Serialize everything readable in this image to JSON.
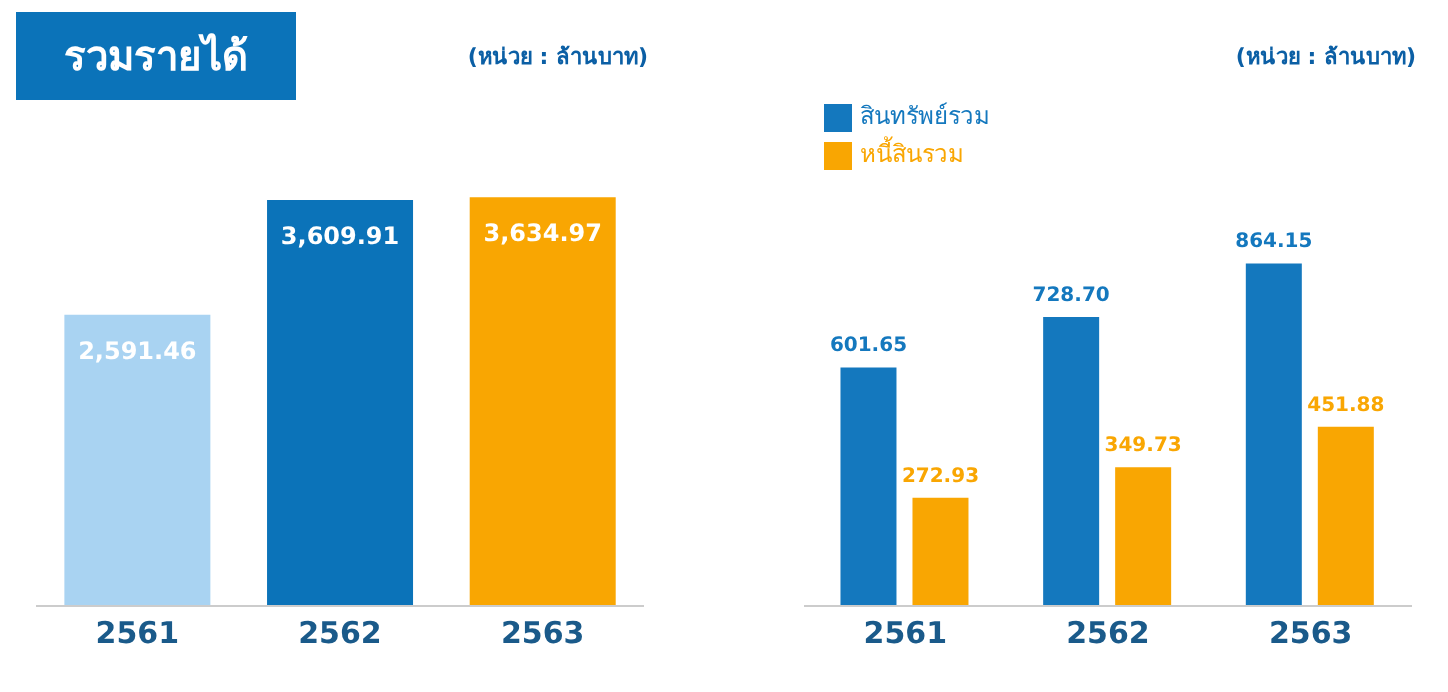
{
  "chart_data": [
    {
      "type": "bar",
      "title": "รวมรายได้",
      "annotations": [
        "(หน่วย : ล้านบาท)"
      ],
      "categories": [
        "2561",
        "2562",
        "2563"
      ],
      "values": [
        2591.46,
        3609.91,
        3634.97
      ],
      "value_labels": [
        "2,591.46",
        "3,609.91",
        "3,634.97"
      ],
      "colors": [
        "#a9d3f2",
        "#0b73b9",
        "#f9a602"
      ]
    },
    {
      "type": "bar",
      "annotations": [
        "(หน่วย : ล้านบาท)"
      ],
      "categories": [
        "2561",
        "2562",
        "2563"
      ],
      "legend": "top left",
      "series": [
        {
          "name": "สินทรัพย์รวม",
          "color": "#1478be",
          "values": [
            601.65,
            728.7,
            864.15
          ],
          "value_labels": [
            "601.65",
            "728.70",
            "864.15"
          ]
        },
        {
          "name": "หนี้สินรวม",
          "color": "#f9a602",
          "values": [
            272.93,
            349.73,
            451.88
          ],
          "value_labels": [
            "272.93",
            "349.73",
            "451.88"
          ]
        }
      ]
    }
  ]
}
